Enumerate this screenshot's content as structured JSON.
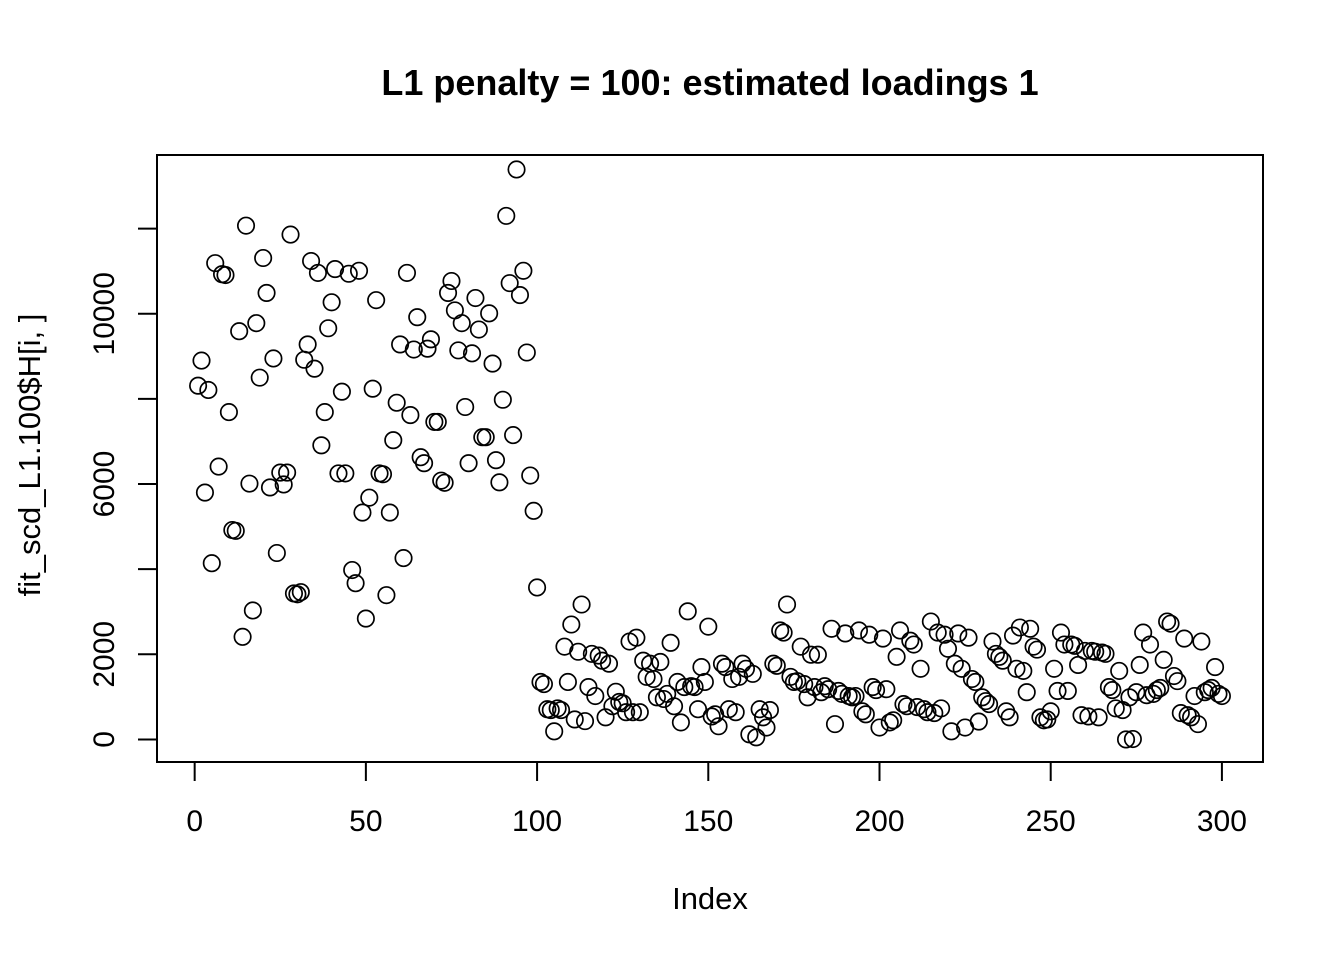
{
  "page": {
    "background": "#ffffff",
    "foreground": "#000000"
  },
  "chart_data": {
    "type": "scatter",
    "title": "L1 penalty = 100: estimated loadings 1",
    "xlabel": "Index",
    "ylabel": "fit_scd_L1.100$H[i, ]",
    "marker": {
      "shape": "open-circle",
      "color": "#000000"
    },
    "grid": false,
    "legend": null,
    "x_ticks": [
      0,
      50,
      100,
      150,
      200,
      250,
      300
    ],
    "y_ticks": [
      0,
      2000,
      4000,
      6000,
      8000,
      10000,
      12000
    ],
    "y_labeled_ticks": [
      0,
      2000,
      6000,
      10000
    ],
    "xlim": [
      -11,
      312
    ],
    "ylim": [
      -530,
      13730
    ],
    "index_start": 1,
    "values": [
      8310,
      8900,
      5800,
      8210,
      4140,
      11190,
      6410,
      10930,
      10910,
      7690,
      4920,
      4900,
      9590,
      2410,
      12070,
      6010,
      3030,
      9780,
      8500,
      11310,
      10490,
      5920,
      8950,
      4380,
      6270,
      5990,
      6270,
      11860,
      3430,
      3410,
      3460,
      8920,
      9280,
      11240,
      8710,
      10960,
      6910,
      7690,
      9660,
      10270,
      11050,
      6250,
      8170,
      6250,
      10940,
      3980,
      3670,
      11010,
      5330,
      2840,
      5680,
      8240,
      10320,
      6250,
      6230,
      3390,
      5330,
      7030,
      7910,
      9280,
      4260,
      10960,
      7620,
      9160,
      9920,
      6630,
      6490,
      9180,
      9400,
      7460,
      7460,
      6080,
      6030,
      10490,
      10770,
      10080,
      9140,
      9780,
      7810,
      6490,
      9070,
      10370,
      9630,
      7100,
      7100,
      10010,
      8830,
      6560,
      6040,
      7980,
      12300,
      10720,
      7150,
      13390,
      10440,
      11010,
      9090,
      6200,
      5370,
      3570,
      1350,
      1300,
      710,
      690,
      190,
      730,
      690,
      2180,
      1350,
      2700,
      470,
      2060,
      3170,
      430,
      1230,
      2010,
      1020,
      1970,
      1850,
      520,
      1780,
      780,
      1120,
      880,
      850,
      640,
      2300,
      640,
      2390,
      640,
      1850,
      1470,
      1780,
      1420,
      990,
      1820,
      950,
      1070,
      2270,
      780,
      1350,
      400,
      1230,
      3010,
      1250,
      1230,
      710,
      1700,
      1350,
      2650,
      540,
      590,
      310,
      1780,
      1700,
      710,
      1420,
      640,
      1470,
      1780,
      1660,
      120,
      1540,
      50,
      710,
      520,
      280,
      690,
      1780,
      1730,
      2560,
      2510,
      3170,
      1470,
      1350,
      1370,
      2180,
      1300,
      990,
      1990,
      1230,
      1990,
      1110,
      1250,
      1180,
      2600,
      360,
      1140,
      1070,
      2490,
      1020,
      990,
      1020,
      2560,
      660,
      590,
      2460,
      1230,
      1160,
      280,
      2370,
      1180,
      400,
      450,
      1940,
      2560,
      830,
      780,
      2320,
      2230,
      760,
      1660,
      710,
      640,
      2770,
      620,
      2510,
      730,
      2460,
      2130,
      190,
      1780,
      2490,
      1660,
      280,
      2390,
      1420,
      1350,
      420,
      990,
      900,
      830,
      2300,
      2010,
      1940,
      1850,
      660,
      520,
      2440,
      1660,
      2630,
      1610,
      1110,
      2600,
      2180,
      2110,
      520,
      450,
      470,
      660,
      1660,
      1140,
      2510,
      2230,
      1140,
      2230,
      2200,
      1750,
      570,
      2080,
      540,
      2080,
      2060,
      520,
      2040,
      2010,
      1230,
      1160,
      730,
      1610,
      690,
      0,
      990,
      10,
      1110,
      1750,
      2510,
      1040,
      2230,
      1070,
      1160,
      1210,
      1870,
      2770,
      2720,
      1490,
      1370,
      620,
      2370,
      570,
      520,
      1020,
      360,
      2300,
      1110,
      1160,
      1210,
      1700,
      1070,
      1020
    ]
  }
}
